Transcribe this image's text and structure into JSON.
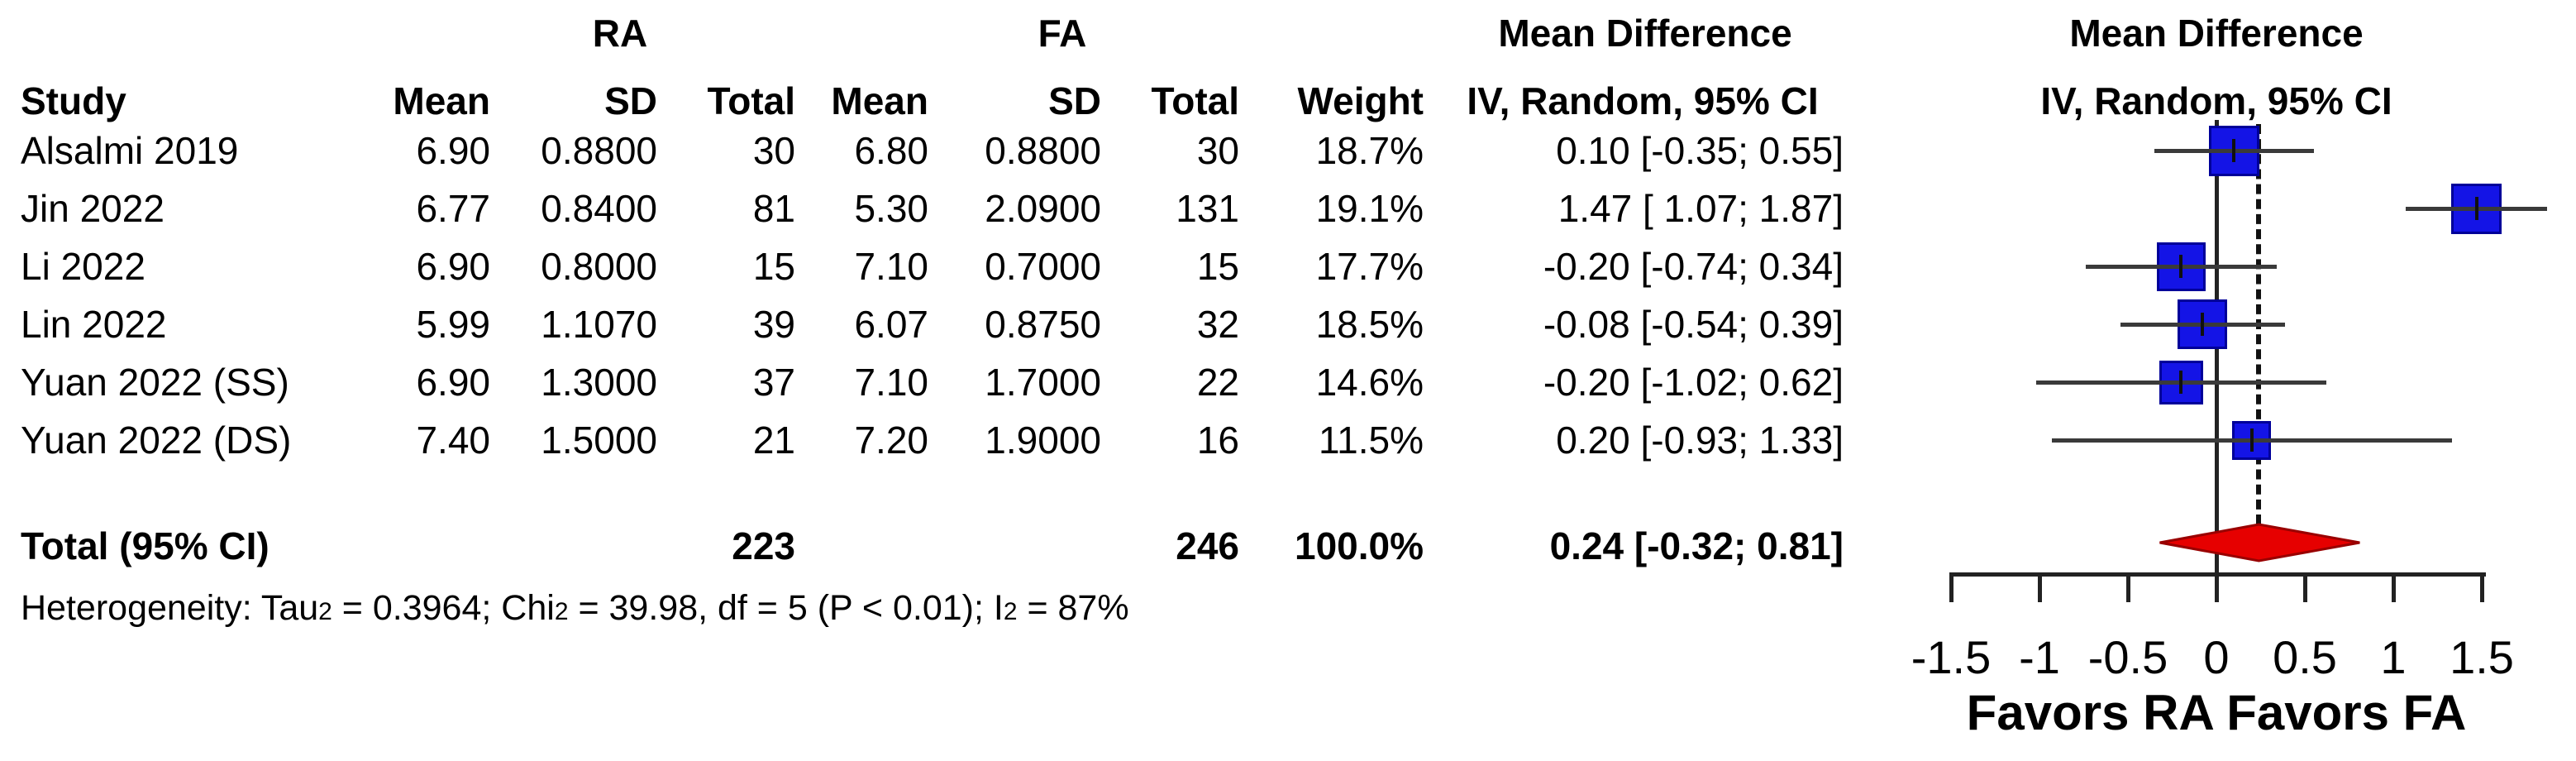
{
  "table": {
    "group_headers": {
      "group1": "RA",
      "group2": "FA"
    },
    "column_headers": {
      "study": "Study",
      "ra_mean": "Mean",
      "ra_sd": "SD",
      "ra_total": "Total",
      "fa_mean": "Mean",
      "fa_sd": "SD",
      "fa_total": "Total",
      "weight": "Weight"
    },
    "md_header_line1": "Mean Difference",
    "md_header_line2": "IV, Random, 95% CI",
    "rows": [
      {
        "study": "Alsalmi 2019",
        "ra_mean": "6.90",
        "ra_sd": "0.8800",
        "ra_total": "30",
        "fa_mean": "6.80",
        "fa_sd": "0.8800",
        "fa_total": "30",
        "weight": "18.7%",
        "md": "0.10 [-0.35; 0.55]"
      },
      {
        "study": "Jin 2022",
        "ra_mean": "6.77",
        "ra_sd": "0.8400",
        "ra_total": "81",
        "fa_mean": "5.30",
        "fa_sd": "2.0900",
        "fa_total": "131",
        "weight": "19.1%",
        "md": "1.47 [ 1.07; 1.87]"
      },
      {
        "study": "Li 2022",
        "ra_mean": "6.90",
        "ra_sd": "0.8000",
        "ra_total": "15",
        "fa_mean": "7.10",
        "fa_sd": "0.7000",
        "fa_total": "15",
        "weight": "17.7%",
        "md": "-0.20 [-0.74; 0.34]"
      },
      {
        "study": "Lin 2022",
        "ra_mean": "5.99",
        "ra_sd": "1.1070",
        "ra_total": "39",
        "fa_mean": "6.07",
        "fa_sd": "0.8750",
        "fa_total": "32",
        "weight": "18.5%",
        "md": "-0.08 [-0.54; 0.39]"
      },
      {
        "study": "Yuan 2022 (SS)",
        "ra_mean": "6.90",
        "ra_sd": "1.3000",
        "ra_total": "37",
        "fa_mean": "7.10",
        "fa_sd": "1.7000",
        "fa_total": "22",
        "weight": "14.6%",
        "md": "-0.20 [-1.02; 0.62]"
      },
      {
        "study": "Yuan 2022 (DS)",
        "ra_mean": "7.40",
        "ra_sd": "1.5000",
        "ra_total": "21",
        "fa_mean": "7.20",
        "fa_sd": "1.9000",
        "fa_total": "16",
        "weight": "11.5%",
        "md": "0.20 [-0.93; 1.33]"
      }
    ],
    "total_row": {
      "label": "Total (95% CI)",
      "ra_total": "223",
      "fa_total": "246",
      "weight": "100.0%",
      "md": "0.24 [-0.32; 0.81]"
    },
    "heterogeneity": [
      "Heterogeneity: Tau",
      "2",
      " = 0.3964; Chi",
      "2",
      " = 39.98, df = 5 (P < 0.01); I",
      "2",
      " = 87%"
    ]
  },
  "chart_data": {
    "type": "forest",
    "title": "Mean Difference",
    "subtitle": "IV, Random, 95% CI",
    "xlim": [
      -1.5,
      1.5
    ],
    "x_ticks": [
      -1.5,
      -1,
      -0.5,
      0,
      0.5,
      1,
      1.5
    ],
    "x_tick_labels": [
      "-1.5",
      "-1",
      "-0.5",
      "0",
      "0.5",
      "1",
      "1.5"
    ],
    "zero_line_x": 0,
    "pooled_dashed_line_x": 0.24,
    "favors_label": "Favors RA Favors FA",
    "studies": [
      {
        "name": "Alsalmi 2019",
        "estimate": 0.1,
        "ci_low": -0.35,
        "ci_high": 0.55,
        "weight_pct": 18.7
      },
      {
        "name": "Jin 2022",
        "estimate": 1.47,
        "ci_low": 1.07,
        "ci_high": 1.87,
        "weight_pct": 19.1
      },
      {
        "name": "Li 2022",
        "estimate": -0.2,
        "ci_low": -0.74,
        "ci_high": 0.34,
        "weight_pct": 17.7
      },
      {
        "name": "Lin 2022",
        "estimate": -0.08,
        "ci_low": -0.54,
        "ci_high": 0.39,
        "weight_pct": 18.5
      },
      {
        "name": "Yuan 2022 (SS)",
        "estimate": -0.2,
        "ci_low": -1.02,
        "ci_high": 0.62,
        "weight_pct": 14.6
      },
      {
        "name": "Yuan 2022 (DS)",
        "estimate": 0.2,
        "ci_low": -0.93,
        "ci_high": 1.33,
        "weight_pct": 11.5
      }
    ],
    "pooled": {
      "label": "Total (95% CI)",
      "estimate": 0.24,
      "ci_low": -0.32,
      "ci_high": 0.81,
      "weight_pct": 100.0
    },
    "legend_position": "none",
    "grid": false,
    "colors": {
      "square_fill": "#1414e6",
      "square_border": "#000099",
      "ci_line": "#3a3a3a",
      "diamond_fill": "#e60000",
      "diamond_border": "#990000",
      "axis": "#222222",
      "text": "#000000"
    }
  }
}
